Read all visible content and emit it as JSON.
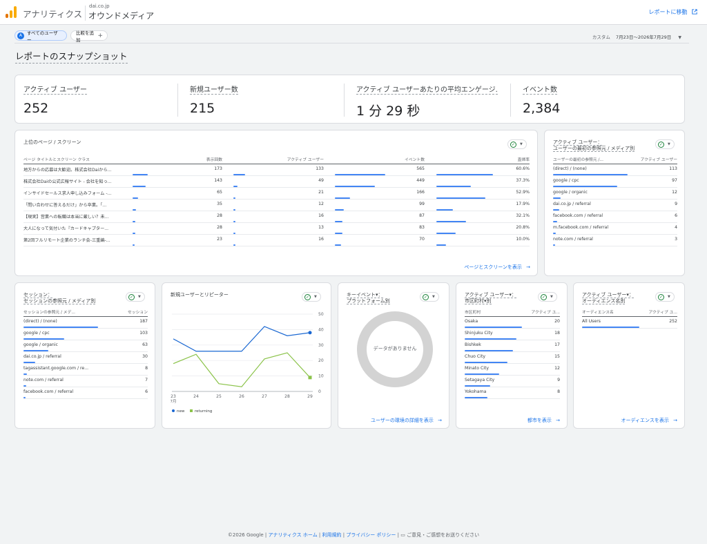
{
  "header": {
    "app_title": "アナリティクス",
    "account": "dai.co.jp",
    "property": "オウンドメディア",
    "to_report": "レポートに移動"
  },
  "filters": {
    "segment": "すべてのユーザー",
    "segment_initial": "A",
    "compare": "比較を追加",
    "date_label": "カスタム",
    "date_range": "7月23日～2026年7月29日"
  },
  "page_title": "レポートのスナップショット",
  "kpis": [
    {
      "label": "アクティブ ユーザー",
      "value": "252"
    },
    {
      "label": "新規ユーザー数",
      "value": "215"
    },
    {
      "label": "アクティブ ユーザーあたりの平均エンゲージ...",
      "value": "1 分 29 秒"
    },
    {
      "label": "イベント数",
      "value": "2,384"
    }
  ],
  "top_pages": {
    "title": "上位のページ / スクリーン",
    "columns": [
      "ページ タイトルとスクリーン クラス",
      "表示回数",
      "アクティブ ユーザー",
      "イベント数",
      "直帰率"
    ],
    "rows": [
      {
        "title": "地方からの応募は大歓迎。株式会社Daiから...",
        "views": "173",
        "users": "133",
        "events": "565",
        "bounce": "60.6%",
        "b": [
          0.173,
          0.133,
          0.565,
          0.606
        ]
      },
      {
        "title": "株式会社Daiの公式広報サイト - 会社を知っ...",
        "views": "143",
        "users": "49",
        "events": "449",
        "bounce": "37.3%",
        "b": [
          0.143,
          0.049,
          0.449,
          0.373
        ]
      },
      {
        "title": "インサイドセールス求人申し込みフォーム -...",
        "views": "65",
        "users": "21",
        "events": "166",
        "bounce": "52.9%",
        "b": [
          0.065,
          0.021,
          0.166,
          0.529
        ]
      },
      {
        "title": "「問い合わせに答えるだけ」から卒業。「...",
        "views": "35",
        "users": "12",
        "events": "99",
        "bounce": "17.9%",
        "b": [
          0.035,
          0.012,
          0.099,
          0.179
        ]
      },
      {
        "title": "【現実】営業への転職は本当に厳しい？未...",
        "views": "28",
        "users": "16",
        "events": "87",
        "bounce": "32.1%",
        "b": [
          0.028,
          0.016,
          0.087,
          0.321
        ]
      },
      {
        "title": "大人になって気付いた『カードキャプター...",
        "views": "28",
        "users": "13",
        "events": "83",
        "bounce": "20.8%",
        "b": [
          0.028,
          0.013,
          0.083,
          0.208
        ]
      },
      {
        "title": "第2回フルリモート企業のランチ会-三重編-...",
        "views": "23",
        "users": "16",
        "events": "70",
        "bounce": "10.0%",
        "b": [
          0.023,
          0.016,
          0.07,
          0.1
        ]
      }
    ],
    "link": "ページとスクリーンを表示"
  },
  "first_source": {
    "title_1": "アクティブ ユーザー：",
    "title_2": "ユーザーの最初の参照元 / メディア別",
    "col1": "ユーザーの最初の参照元 /...",
    "col2": "アクティブ ユーザー",
    "rows": [
      {
        "label": "(direct) / (none)",
        "value": "113"
      },
      {
        "label": "google / cpc",
        "value": "97"
      },
      {
        "label": "google / organic",
        "value": "12"
      },
      {
        "label": "dai.co.jp / referral",
        "value": "9"
      },
      {
        "label": "facebook.com / referral",
        "value": "6"
      },
      {
        "label": "m.facebook.com / referral",
        "value": "4"
      },
      {
        "label": "note.com / referral",
        "value": "3"
      }
    ]
  },
  "sessions": {
    "title_1": "セッション：",
    "title_2": "セッションの参照元 / メディア別",
    "col1": "セッションの参照元 / メデ...",
    "col2": "セッション",
    "rows": [
      {
        "label": "(direct) / (none)",
        "value": "187"
      },
      {
        "label": "google / cpc",
        "value": "103"
      },
      {
        "label": "google / organic",
        "value": "63"
      },
      {
        "label": "dai.co.jp / referral",
        "value": "30"
      },
      {
        "label": "tagassistant.google.com / re...",
        "value": "8"
      },
      {
        "label": "note.com / referral",
        "value": "7"
      },
      {
        "label": "facebook.com / referral",
        "value": "6"
      }
    ]
  },
  "new_vs_returning": {
    "title": "新規ユーザーとリピーター"
  },
  "chart_data": {
    "type": "line",
    "title": "新規ユーザーとリピーター",
    "x": [
      "23",
      "24",
      "25",
      "26",
      "27",
      "28",
      "29"
    ],
    "x_sub": "7月",
    "ylim": [
      0,
      50
    ],
    "yticks": [
      "0",
      "10",
      "20",
      "30",
      "40",
      "50"
    ],
    "series": [
      {
        "name": "new",
        "color": "#1967d2",
        "values": [
          34,
          26,
          26,
          26,
          42,
          36,
          38
        ]
      },
      {
        "name": "returning",
        "color": "#8bc34a",
        "values": [
          18,
          24,
          5,
          3,
          21,
          25,
          9
        ]
      }
    ],
    "grid": true,
    "legend": "bottom-left"
  },
  "key_events": {
    "title_1": "キーイベント▾：",
    "title_2": "プラットフォーム別",
    "no_data": "データがありません",
    "link": "ユーザーの環境の詳細を表示"
  },
  "cities": {
    "title_1": "アクティブ ユーザー▾：",
    "title_2": "市区町村▾別",
    "col1": "市区町村",
    "col2": "アクティブ ユ...",
    "rows": [
      {
        "label": "Osaka",
        "value": "20"
      },
      {
        "label": "Shinjuku City",
        "value": "18"
      },
      {
        "label": "Bishkek",
        "value": "17"
      },
      {
        "label": "Chuo City",
        "value": "15"
      },
      {
        "label": "Minato City",
        "value": "12"
      },
      {
        "label": "Setagaya City",
        "value": "9"
      },
      {
        "label": "Yokohama",
        "value": "8"
      }
    ],
    "link": "都市を表示"
  },
  "audiences": {
    "title_1": "アクティブ ユーザー▾：",
    "title_2": "オーディエンス名別",
    "col1": "オーディエンス名",
    "col2": "アクティブ ユ...",
    "rows": [
      {
        "label": "All Users",
        "value": "252"
      }
    ],
    "link": "オーディエンスを表示"
  },
  "footer": {
    "copyright": "©2026 Google",
    "home": "アナリティクス ホーム",
    "terms": "利用規約",
    "privacy": "プライバシー ポリシー",
    "feedback": "ご意見・ご感想をお送りください"
  }
}
